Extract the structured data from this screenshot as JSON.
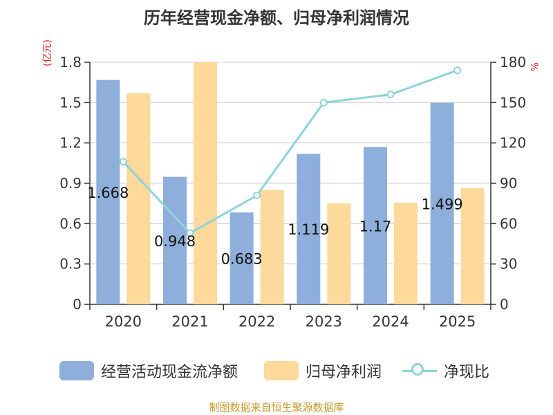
{
  "chart_data": {
    "type": "bar",
    "title": "历年经营现金净额、归母净利润情况",
    "categories": [
      "2020",
      "2021",
      "2022",
      "2023",
      "2024",
      "2025"
    ],
    "series": [
      {
        "name": "经营活动现金流净额",
        "axis": "left",
        "kind": "bar",
        "color": "#8eafdb",
        "values": [
          1.668,
          0.948,
          0.683,
          1.119,
          1.17,
          1.499
        ],
        "labels": [
          "1.668",
          "0.948",
          "0.683",
          "1.119",
          "1.17",
          "1.499"
        ]
      },
      {
        "name": "归母净利润",
        "axis": "left",
        "kind": "bar",
        "color": "#fdd99b",
        "values": [
          1.57,
          1.8,
          0.85,
          0.75,
          0.755,
          0.865
        ]
      },
      {
        "name": "净现比",
        "axis": "right",
        "kind": "line",
        "color": "#8dd3d8",
        "values": [
          106,
          53,
          81,
          150,
          156,
          174
        ]
      }
    ],
    "yleft": {
      "label": "(亿元)",
      "range": [
        0,
        1.8
      ],
      "ticks": [
        "0",
        "0.3",
        "0.6",
        "0.9",
        "1.2",
        "1.5",
        "1.8"
      ]
    },
    "yright": {
      "label": "%",
      "range": [
        0,
        180
      ],
      "ticks": [
        "0",
        "30",
        "60",
        "90",
        "120",
        "150",
        "180"
      ]
    },
    "grid": true,
    "legend_position": "bottom"
  },
  "source": "制图数据来自恒生聚源数据库"
}
